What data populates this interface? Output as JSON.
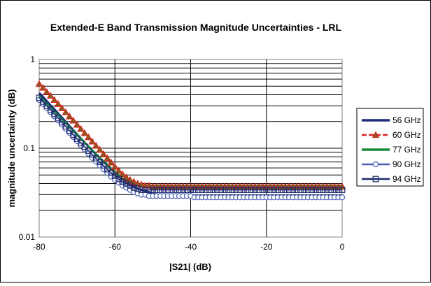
{
  "chart_data": {
    "type": "line",
    "title": "Extended-E Band Transmission Magnitude Uncertainties - LRL",
    "xlabel": "|S21| (dB)",
    "ylabel": "magnitude uncertainty (dB)",
    "xlim": [
      -80,
      0
    ],
    "ylim": [
      0.01,
      1
    ],
    "yscale": "log",
    "grid": true,
    "legend_position": "right",
    "x_ticks": [
      "-80",
      "-60",
      "-40",
      "-20",
      "0"
    ],
    "y_ticks": [
      "0.01",
      "0.1",
      "1"
    ],
    "x": [
      -80,
      -79,
      -78,
      -77,
      -76,
      -75,
      -74,
      -73,
      -72,
      -71,
      -70,
      -69,
      -68,
      -67,
      -66,
      -65,
      -64,
      -63,
      -62,
      -61,
      -60,
      -59,
      -58,
      -57,
      -56,
      -55,
      -54,
      -53,
      -52,
      -51,
      -50,
      -49,
      -48,
      -47,
      -46,
      -45,
      -44,
      -43,
      -42,
      -41,
      -40,
      -39,
      -38,
      -37,
      -36,
      -35,
      -34,
      -33,
      -32,
      -31,
      -30,
      -29,
      -28,
      -27,
      -26,
      -25,
      -24,
      -23,
      -22,
      -21,
      -20,
      -19,
      -18,
      -17,
      -16,
      -15,
      -14,
      -13,
      -12,
      -11,
      -10,
      -9,
      -8,
      -7,
      -6,
      -5,
      -4,
      -3,
      -2,
      -1,
      0
    ],
    "series": [
      {
        "name": "56 GHz",
        "color": "#1f2a7a",
        "marker": "none",
        "values": [
          0.42,
          0.38,
          0.34,
          0.305,
          0.275,
          0.247,
          0.222,
          0.199,
          0.178,
          0.16,
          0.144,
          0.129,
          0.116,
          0.104,
          0.094,
          0.085,
          0.077,
          0.07,
          0.064,
          0.058,
          0.053,
          0.048,
          0.045,
          0.042,
          0.039,
          0.037,
          0.035,
          0.034,
          0.033,
          0.032,
          0.031,
          0.03,
          0.03,
          0.029,
          0.029,
          0.029,
          0.029,
          0.029,
          0.029,
          0.029,
          0.029,
          0.029,
          0.029,
          0.029,
          0.029,
          0.029,
          0.029,
          0.029,
          0.029,
          0.029,
          0.029,
          0.029,
          0.029,
          0.029,
          0.029,
          0.029,
          0.029,
          0.029,
          0.029,
          0.029,
          0.029,
          0.029,
          0.029,
          0.029,
          0.029,
          0.029,
          0.029,
          0.029,
          0.029,
          0.029,
          0.029,
          0.029,
          0.029,
          0.029,
          0.029,
          0.029,
          0.029,
          0.029,
          0.029,
          0.029,
          0.029
        ]
      },
      {
        "name": "60 GHz",
        "color": "#e02020",
        "marker": "triangle",
        "values": [
          0.53,
          0.48,
          0.43,
          0.39,
          0.35,
          0.315,
          0.283,
          0.254,
          0.228,
          0.205,
          0.184,
          0.165,
          0.148,
          0.133,
          0.119,
          0.107,
          0.096,
          0.086,
          0.077,
          0.069,
          0.062,
          0.056,
          0.051,
          0.047,
          0.044,
          0.042,
          0.04,
          0.039,
          0.038,
          0.038,
          0.037,
          0.037,
          0.037,
          0.037,
          0.037,
          0.037,
          0.037,
          0.037,
          0.037,
          0.037,
          0.037,
          0.037,
          0.037,
          0.037,
          0.037,
          0.037,
          0.037,
          0.037,
          0.037,
          0.037,
          0.037,
          0.037,
          0.037,
          0.037,
          0.037,
          0.037,
          0.037,
          0.037,
          0.037,
          0.037,
          0.037,
          0.037,
          0.037,
          0.037,
          0.037,
          0.037,
          0.037,
          0.037,
          0.037,
          0.037,
          0.037,
          0.037,
          0.037,
          0.037,
          0.037,
          0.037,
          0.037,
          0.037,
          0.037,
          0.037,
          0.037
        ]
      },
      {
        "name": "77 GHz",
        "color": "#178a3a",
        "marker": "none",
        "values": [
          0.39,
          0.355,
          0.32,
          0.29,
          0.262,
          0.237,
          0.214,
          0.193,
          0.174,
          0.157,
          0.142,
          0.128,
          0.116,
          0.105,
          0.095,
          0.086,
          0.078,
          0.071,
          0.065,
          0.059,
          0.054,
          0.05,
          0.046,
          0.043,
          0.041,
          0.04,
          0.039,
          0.038,
          0.038,
          0.038,
          0.038,
          0.038,
          0.038,
          0.038,
          0.038,
          0.038,
          0.038,
          0.038,
          0.038,
          0.038,
          0.038,
          0.038,
          0.038,
          0.038,
          0.038,
          0.038,
          0.038,
          0.038,
          0.038,
          0.038,
          0.038,
          0.038,
          0.038,
          0.038,
          0.038,
          0.038,
          0.038,
          0.038,
          0.038,
          0.038,
          0.038,
          0.038,
          0.038,
          0.038,
          0.038,
          0.038,
          0.038,
          0.038,
          0.038,
          0.038,
          0.038,
          0.038,
          0.038,
          0.038,
          0.038,
          0.038,
          0.038,
          0.038,
          0.038,
          0.038,
          0.038
        ]
      },
      {
        "name": "90 GHz",
        "color": "#4a60b8",
        "marker": "circle",
        "values": [
          0.35,
          0.315,
          0.283,
          0.255,
          0.229,
          0.206,
          0.185,
          0.166,
          0.149,
          0.134,
          0.12,
          0.108,
          0.097,
          0.087,
          0.078,
          0.071,
          0.064,
          0.058,
          0.053,
          0.048,
          0.044,
          0.041,
          0.038,
          0.036,
          0.034,
          0.032,
          0.031,
          0.03,
          0.03,
          0.029,
          0.029,
          0.029,
          0.029,
          0.029,
          0.029,
          0.029,
          0.029,
          0.029,
          0.029,
          0.029,
          0.029,
          0.028,
          0.028,
          0.028,
          0.028,
          0.028,
          0.028,
          0.028,
          0.028,
          0.028,
          0.028,
          0.028,
          0.028,
          0.028,
          0.028,
          0.028,
          0.028,
          0.028,
          0.028,
          0.028,
          0.028,
          0.028,
          0.028,
          0.028,
          0.028,
          0.028,
          0.028,
          0.028,
          0.028,
          0.028,
          0.028,
          0.028,
          0.028,
          0.028,
          0.028,
          0.028,
          0.028,
          0.028,
          0.028,
          0.028,
          0.028
        ]
      },
      {
        "name": "94 GHz",
        "color": "#1f2a6a",
        "marker": "square",
        "values": [
          0.37,
          0.335,
          0.3,
          0.27,
          0.243,
          0.218,
          0.196,
          0.176,
          0.158,
          0.142,
          0.128,
          0.115,
          0.104,
          0.094,
          0.085,
          0.077,
          0.07,
          0.064,
          0.058,
          0.053,
          0.049,
          0.045,
          0.042,
          0.04,
          0.038,
          0.036,
          0.035,
          0.034,
          0.034,
          0.034,
          0.034,
          0.034,
          0.034,
          0.034,
          0.034,
          0.034,
          0.034,
          0.034,
          0.034,
          0.034,
          0.034,
          0.034,
          0.034,
          0.034,
          0.034,
          0.034,
          0.034,
          0.034,
          0.034,
          0.034,
          0.034,
          0.034,
          0.034,
          0.034,
          0.034,
          0.034,
          0.034,
          0.034,
          0.034,
          0.034,
          0.034,
          0.034,
          0.034,
          0.034,
          0.034,
          0.034,
          0.034,
          0.034,
          0.034,
          0.034,
          0.034,
          0.034,
          0.034,
          0.034,
          0.034,
          0.034,
          0.034,
          0.034,
          0.034,
          0.034,
          0.034
        ]
      }
    ]
  }
}
